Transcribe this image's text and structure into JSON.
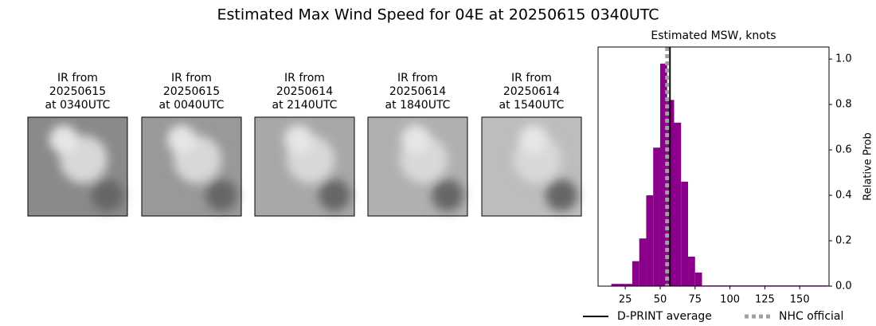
{
  "title": "Estimated Max Wind Speed for 04E at 20250615 0340UTC",
  "panels": [
    {
      "lines": [
        "IR from",
        "20250615",
        "at 0340UTC"
      ]
    },
    {
      "lines": [
        "IR from",
        "20250615",
        "at 0040UTC"
      ]
    },
    {
      "lines": [
        "IR from",
        "20250614",
        "at 2140UTC"
      ]
    },
    {
      "lines": [
        "IR from",
        "20250614",
        "at 1840UTC"
      ]
    },
    {
      "lines": [
        "IR from",
        "20250614",
        "at 1540UTC"
      ]
    }
  ],
  "chart_data": {
    "type": "histogram",
    "title": "Estimated MSW, knots",
    "ylabel": "Relative Prob",
    "color": "#8b008b",
    "bins": [
      15,
      20,
      25,
      30,
      35,
      40,
      45,
      50,
      55,
      60,
      65,
      70,
      75,
      80,
      85,
      90,
      95,
      100,
      105,
      110,
      115,
      120,
      125,
      130,
      135,
      140,
      145,
      150,
      155,
      160,
      165,
      170
    ],
    "values": [
      0.01,
      0.01,
      0.01,
      0.11,
      0.21,
      0.4,
      0.61,
      0.98,
      0.82,
      0.72,
      0.46,
      0.13,
      0.06,
      0.003,
      0.003,
      0.003,
      0.003,
      0.003,
      0.003,
      0.003,
      0.003,
      0.003,
      0.003,
      0.003,
      0.003,
      0.003,
      0.003,
      0.003,
      0.003,
      0.003,
      0.003
    ],
    "xlim": [
      5.5,
      171
    ],
    "ylim": [
      0,
      1.053
    ],
    "xticks": [
      25,
      50,
      75,
      100,
      125,
      150
    ],
    "yticks": [
      {
        "value": 0,
        "label": "0.0"
      },
      {
        "value": 0.2,
        "label": "0.2"
      },
      {
        "value": 0.4,
        "label": "0.4"
      },
      {
        "value": 0.6,
        "label": "0.6"
      },
      {
        "value": 0.8,
        "label": "0.8"
      },
      {
        "value": 1.0,
        "label": "1.0"
      }
    ],
    "lines": [
      {
        "name": "D-PRINT average",
        "value": 57,
        "color": "#000000",
        "style": "solid"
      },
      {
        "name": "NHC official",
        "value": 55,
        "color": "#a0a0a0",
        "style": "dotted"
      }
    ]
  }
}
